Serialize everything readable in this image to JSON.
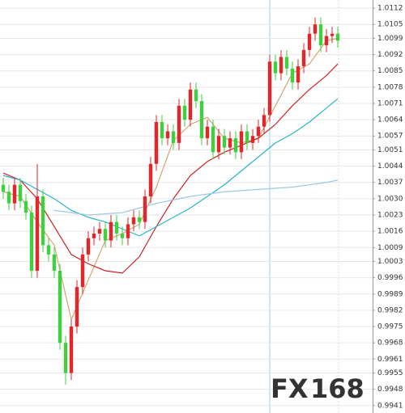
{
  "chart_data": {
    "type": "candlestick",
    "x": [
      0,
      1,
      2,
      3,
      4,
      5,
      6,
      7,
      8,
      9,
      10,
      11,
      12,
      13,
      14,
      15,
      16,
      17,
      18,
      19,
      20,
      21,
      22,
      23,
      24,
      25,
      26,
      27,
      28,
      29,
      30,
      31,
      32,
      33,
      34,
      35,
      36,
      37,
      38,
      39,
      40,
      41,
      42,
      43,
      44,
      45,
      46,
      47,
      48,
      49,
      50,
      51,
      52,
      53,
      54,
      55,
      56,
      57,
      58,
      59
    ],
    "open": [
      1.0036,
      1.0033,
      1.0028,
      1.0036,
      1.0029,
      1.0024,
      0.9999,
      1.0031,
      1.001,
      1.0006,
      0.9999,
      0.9968,
      0.9955,
      0.9975,
      0.9992,
      1.0006,
      1.0013,
      1.0015,
      1.0017,
      1.0012,
      1.002,
      1.0015,
      1.0013,
      1.0019,
      1.0022,
      1.002,
      1.0031,
      1.0045,
      1.0063,
      1.0056,
      1.0059,
      1.0054,
      1.007,
      1.0064,
      1.0077,
      1.0072,
      1.0056,
      1.0061,
      1.005,
      1.0057,
      1.0052,
      1.0056,
      1.005,
      1.0059,
      1.0054,
      1.0057,
      1.0061,
      1.0066,
      1.0089,
      1.0084,
      1.0091,
      1.0086,
      1.008,
      1.0087,
      1.0094,
      1.0101,
      1.0105,
      1.0096,
      1.01,
      1.0101
    ],
    "high": [
      1.0039,
      1.0036,
      1.0039,
      1.0039,
      1.0032,
      1.0027,
      1.0045,
      1.0034,
      1.0013,
      1.0009,
      1.0002,
      0.9971,
      0.9978,
      0.9995,
      1.0009,
      1.0016,
      1.0018,
      1.002,
      1.002,
      1.0023,
      1.0023,
      1.0018,
      1.0022,
      1.0025,
      1.0025,
      1.0034,
      1.0048,
      1.0066,
      1.0066,
      1.0062,
      1.0062,
      1.0073,
      1.0073,
      1.008,
      1.008,
      1.0075,
      1.0064,
      1.0064,
      1.006,
      1.006,
      1.0059,
      1.0059,
      1.0062,
      1.0062,
      1.006,
      1.0064,
      1.0069,
      1.0092,
      1.0092,
      1.0094,
      1.0094,
      1.0089,
      1.009,
      1.0097,
      1.0104,
      1.0108,
      1.0108,
      1.0103,
      1.0104,
      1.0104
    ],
    "low": [
      1.003,
      1.0025,
      1.0025,
      1.0026,
      1.0021,
      0.9996,
      0.9996,
      1.0007,
      1.0003,
      0.9996,
      0.9965,
      0.995,
      0.9952,
      0.9972,
      0.9989,
      1.0003,
      1.001,
      1.0012,
      1.0009,
      1.0009,
      1.0012,
      1.001,
      1.001,
      1.0016,
      1.0017,
      1.0017,
      1.0028,
      1.0042,
      1.0053,
      1.0053,
      1.0051,
      1.0051,
      1.0061,
      1.0061,
      1.0069,
      1.0053,
      1.0053,
      1.0047,
      1.0047,
      1.0049,
      1.0049,
      1.0047,
      1.0047,
      1.0051,
      1.0051,
      1.0054,
      1.0058,
      1.0063,
      1.0081,
      1.0081,
      1.0083,
      1.0077,
      1.0077,
      1.0084,
      1.0091,
      1.0098,
      1.0093,
      1.0093,
      1.0097,
      1.0095
    ],
    "close": [
      1.0033,
      1.0028,
      1.0036,
      1.0029,
      1.0024,
      0.9999,
      1.0031,
      1.001,
      1.0006,
      0.9999,
      0.9968,
      0.9955,
      0.9975,
      0.9992,
      1.0006,
      1.0013,
      1.0015,
      1.0017,
      1.0012,
      1.002,
      1.0015,
      1.0013,
      1.0019,
      1.0022,
      1.002,
      1.0031,
      1.0045,
      1.0063,
      1.0056,
      1.0059,
      1.0054,
      1.007,
      1.0064,
      1.0077,
      1.0072,
      1.0056,
      1.0061,
      1.005,
      1.0057,
      1.0052,
      1.0056,
      1.005,
      1.0059,
      1.0054,
      1.0057,
      1.0061,
      1.0066,
      1.0089,
      1.0084,
      1.0091,
      1.0086,
      1.008,
      1.0087,
      1.0094,
      1.0101,
      1.0105,
      1.0096,
      1.01,
      1.0101,
      1.0098
    ],
    "up_color": "#e3262a",
    "down_color": "#3fcf3f",
    "lines": [
      {
        "color": "#d4a574",
        "x": [
          0,
          3,
          6,
          9,
          12,
          15,
          18,
          21,
          24,
          27,
          30,
          33,
          36,
          39,
          42,
          45,
          48,
          51,
          54,
          57,
          59
        ],
        "values": [
          1.0033,
          1.0031,
          1.002,
          1.001,
          0.9978,
          0.9995,
          1.0012,
          1.0015,
          1.0019,
          1.0035,
          1.0055,
          1.0062,
          1.0065,
          1.0056,
          1.0054,
          1.0056,
          1.007,
          1.0084,
          1.0088,
          1.0098,
          1.0099
        ]
      },
      {
        "color": "#cc2222",
        "x": [
          0,
          3,
          6,
          9,
          12,
          15,
          18,
          21,
          24,
          27,
          30,
          33,
          36,
          39,
          42,
          45,
          48,
          51,
          54,
          57,
          59
        ],
        "values": [
          1.0041,
          1.0038,
          1.003,
          1.0018,
          1.0006,
          1.0002,
          0.9999,
          0.9998,
          1.0005,
          1.0018,
          1.003,
          1.004,
          1.0046,
          1.005,
          1.0053,
          1.0056,
          1.0062,
          1.007,
          1.0077,
          1.0083,
          1.0088
        ]
      },
      {
        "color": "#2ab3c9",
        "x": [
          0,
          3,
          6,
          9,
          12,
          15,
          18,
          21,
          24,
          27,
          30,
          33,
          36,
          39,
          42,
          45,
          48,
          51,
          54,
          57,
          59
        ],
        "values": [
          1.004,
          1.0038,
          1.0034,
          1.003,
          1.0025,
          1.0022,
          1.002,
          1.0017,
          1.0014,
          1.0018,
          1.0022,
          1.0026,
          1.0031,
          1.0036,
          1.0042,
          1.0048,
          1.0054,
          1.0058,
          1.0063,
          1.0069,
          1.0073
        ]
      },
      {
        "color": "#9cc7e6",
        "x": [
          9,
          15,
          21,
          27,
          33,
          39,
          45,
          51,
          57,
          59
        ],
        "values": [
          1.0025,
          1.0023,
          1.0024,
          1.0028,
          1.0031,
          1.0033,
          1.0034,
          1.0035,
          1.0037,
          1.0038
        ]
      }
    ],
    "xlim": [
      -0.57,
      65.14
    ],
    "ylim": [
      0.99378,
      1.01155
    ],
    "yticks": [
      1.0112,
      1.0105,
      1.0099,
      1.0092,
      1.0085,
      1.0078,
      1.0071,
      1.0064,
      1.0057,
      1.0051,
      1.0044,
      1.0037,
      {
        "value": 1.003,
        "label": "1.0030"
      },
      1.0023,
      1.0016,
      1.0009,
      1.0003,
      0.9996,
      0.9989,
      0.9982,
      0.9975,
      0.9968,
      0.9961,
      0.9955,
      0.9948,
      0.9941
    ],
    "grid": true,
    "watermark": [
      "FX",
      "168"
    ]
  }
}
